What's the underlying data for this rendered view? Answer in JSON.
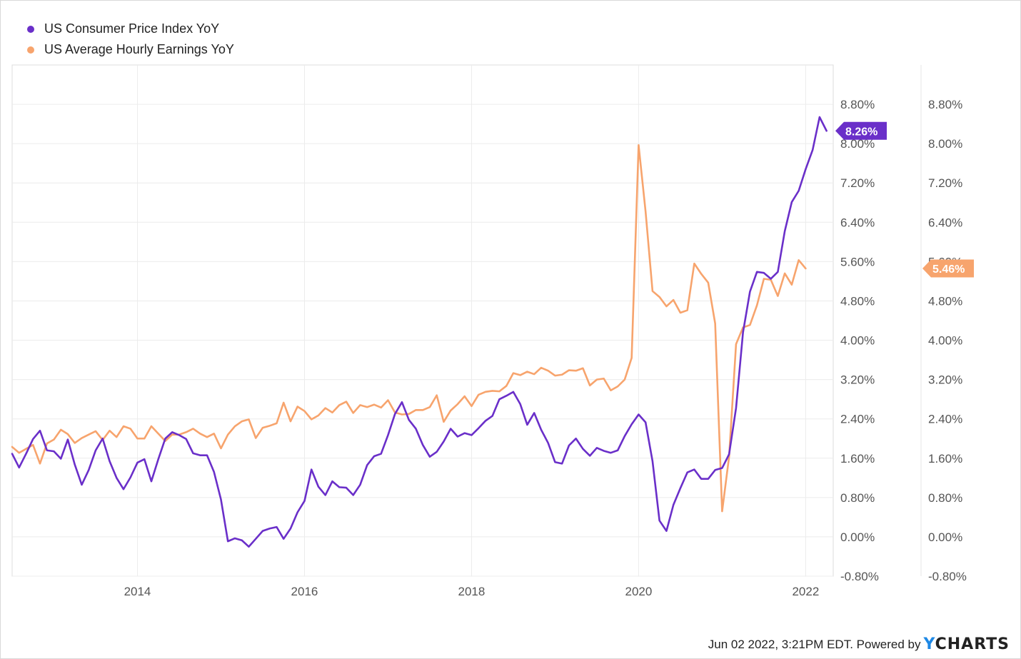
{
  "legend": [
    {
      "label": "US Consumer Price Index YoY",
      "color": "#6a2fc9"
    },
    {
      "label": "US Average Hourly Earnings YoY",
      "color": "#f7a46d"
    }
  ],
  "footer": {
    "timestamp": "Jun 02 2022, 3:21PM EDT.",
    "powered_by": "Powered by",
    "brand_prefix": "Y",
    "brand_rest": "CHARTS"
  },
  "chart_data": {
    "type": "line",
    "x_ticks": [
      "2014",
      "2016",
      "2018",
      "2020",
      "2022"
    ],
    "y_ticks": [
      "-0.80%",
      "0.00%",
      "0.80%",
      "1.60%",
      "2.40%",
      "3.20%",
      "4.00%",
      "4.80%",
      "5.60%",
      "6.40%",
      "7.20%",
      "8.00%",
      "8.80%"
    ],
    "ylim": [
      -0.8,
      8.8
    ],
    "xlim": [
      2012.5,
      2022.33
    ],
    "grid": true,
    "legend_position": "top-left",
    "last_value_flags": [
      "8.26%",
      "5.46%"
    ],
    "series": [
      {
        "name": "US Consumer Price Index YoY",
        "color": "#6a2fc9",
        "start": 2012.5,
        "step_months": 1,
        "values": [
          1.69,
          1.41,
          1.69,
          1.99,
          2.16,
          1.76,
          1.74,
          1.59,
          1.98,
          1.47,
          1.06,
          1.36,
          1.76,
          2.0,
          1.54,
          1.2,
          0.97,
          1.21,
          1.51,
          1.58,
          1.13,
          1.58,
          2.0,
          2.13,
          2.07,
          1.99,
          1.7,
          1.66,
          1.66,
          1.32,
          0.76,
          -0.09,
          -0.03,
          -0.07,
          -0.2,
          -0.04,
          0.12,
          0.17,
          0.2,
          -0.04,
          0.17,
          0.5,
          0.73,
          1.37,
          1.02,
          0.85,
          1.13,
          1.01,
          1.0,
          0.85,
          1.06,
          1.46,
          1.64,
          1.69,
          2.07,
          2.5,
          2.74,
          2.38,
          2.2,
          1.87,
          1.63,
          1.73,
          1.94,
          2.2,
          2.04,
          2.11,
          2.07,
          2.21,
          2.36,
          2.46,
          2.8,
          2.87,
          2.95,
          2.7,
          2.28,
          2.52,
          2.18,
          1.91,
          1.52,
          1.49,
          1.86,
          2.0,
          1.79,
          1.65,
          1.81,
          1.75,
          1.71,
          1.76,
          2.05,
          2.29,
          2.49,
          2.33,
          1.54,
          0.33,
          0.12,
          0.65,
          0.99,
          1.31,
          1.37,
          1.18,
          1.18,
          1.36,
          1.4,
          1.68,
          2.62,
          4.16,
          4.99,
          5.39,
          5.37,
          5.25,
          5.39,
          6.22,
          6.81,
          7.04,
          7.48,
          7.87,
          8.54,
          8.26
        ]
      },
      {
        "name": "US Average Hourly Earnings YoY",
        "color": "#f7a46d",
        "start": 2012.5,
        "step_months": 1,
        "values": [
          1.83,
          1.71,
          1.79,
          1.87,
          1.49,
          1.9,
          1.98,
          2.18,
          2.09,
          1.91,
          2.01,
          2.08,
          2.15,
          1.97,
          2.16,
          2.03,
          2.25,
          2.2,
          2.0,
          2.0,
          2.25,
          2.1,
          1.95,
          2.08,
          2.08,
          2.13,
          2.2,
          2.1,
          2.03,
          2.1,
          1.8,
          2.08,
          2.25,
          2.35,
          2.39,
          2.01,
          2.22,
          2.26,
          2.31,
          2.73,
          2.35,
          2.65,
          2.56,
          2.39,
          2.47,
          2.62,
          2.53,
          2.68,
          2.75,
          2.52,
          2.68,
          2.64,
          2.69,
          2.63,
          2.78,
          2.53,
          2.49,
          2.5,
          2.58,
          2.58,
          2.64,
          2.88,
          2.34,
          2.57,
          2.7,
          2.86,
          2.66,
          2.89,
          2.95,
          2.97,
          2.96,
          3.07,
          3.33,
          3.29,
          3.36,
          3.31,
          3.44,
          3.38,
          3.28,
          3.3,
          3.39,
          3.38,
          3.43,
          3.08,
          3.2,
          3.22,
          2.98,
          3.06,
          3.2,
          3.64,
          7.97,
          6.62,
          5.0,
          4.88,
          4.69,
          4.82,
          4.56,
          4.61,
          5.56,
          5.35,
          5.17,
          4.34,
          0.52,
          1.63,
          3.92,
          4.26,
          4.31,
          4.71,
          5.25,
          5.23,
          4.9,
          5.36,
          5.13,
          5.63,
          5.46
        ]
      }
    ]
  }
}
